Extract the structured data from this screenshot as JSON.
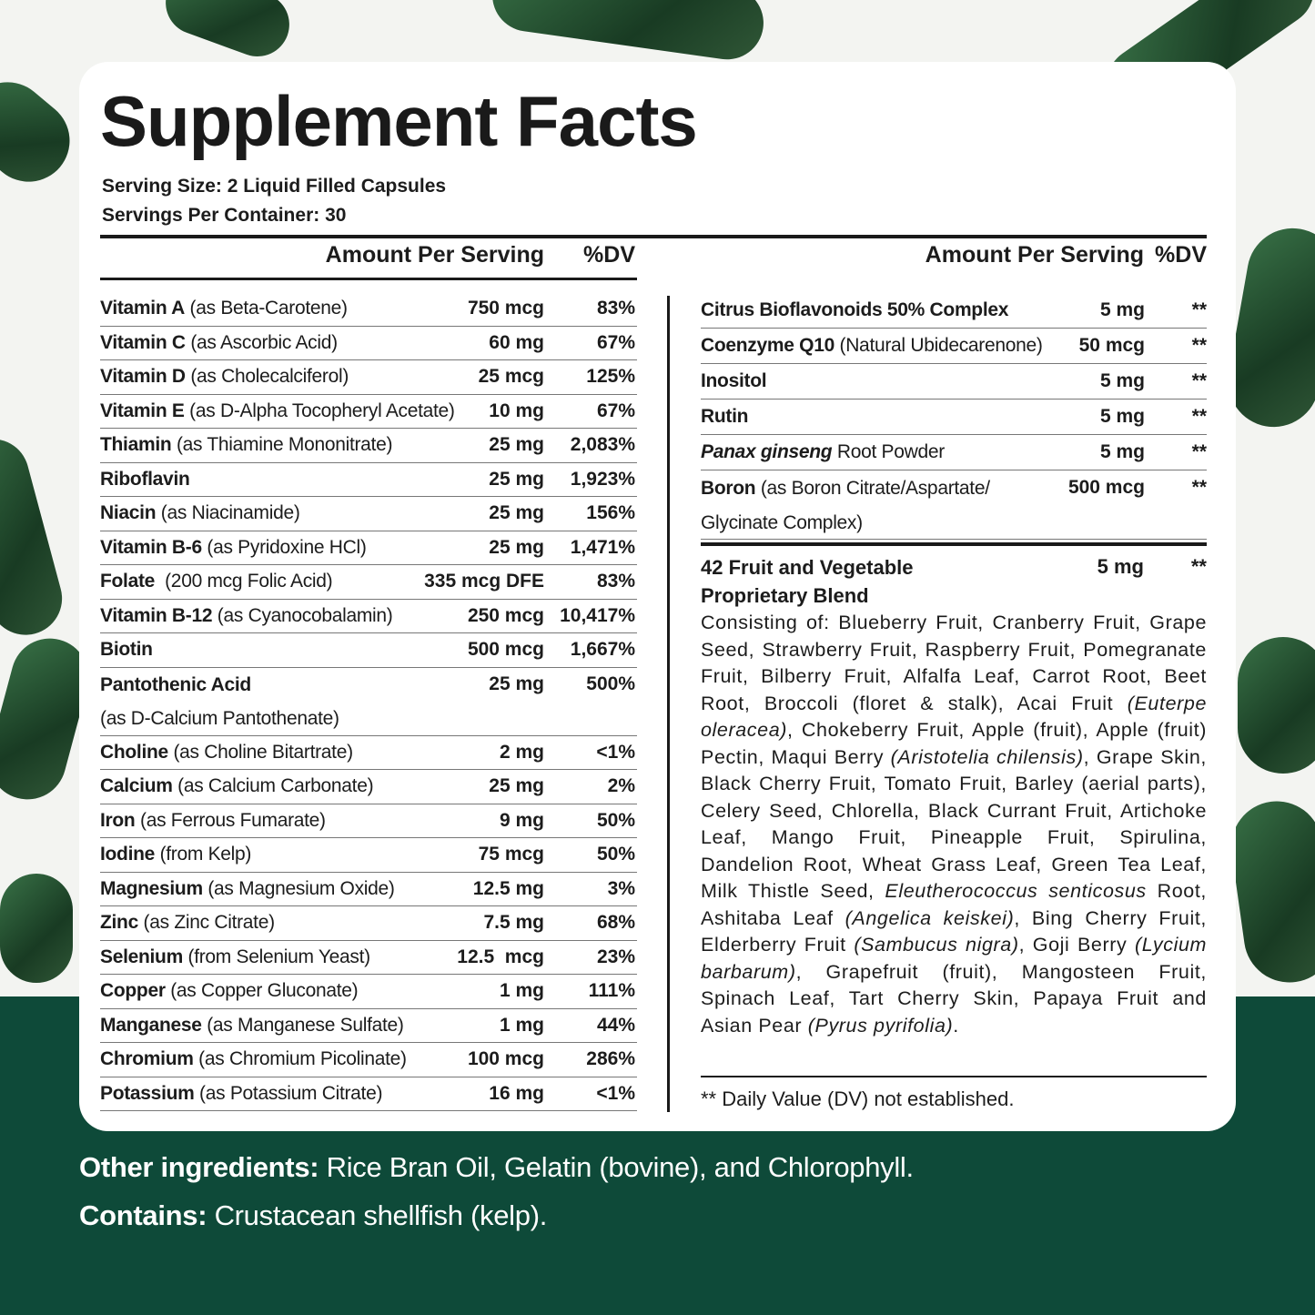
{
  "title": "Supplement Facts",
  "serving_size": "Serving Size: 2 Liquid Filled Capsules",
  "servings_per_container": "Servings Per Container: 30",
  "headers": {
    "amount": "Amount Per Serving",
    "dv": "%DV"
  },
  "left_rows": [
    {
      "name": "Vitamin A",
      "desc": " (as Beta-Carotene)",
      "amount": "750 mcg",
      "dv": "83%"
    },
    {
      "name": "Vitamin C",
      "desc": " (as Ascorbic Acid)",
      "amount": "60 mg",
      "dv": "67%"
    },
    {
      "name": "Vitamin D",
      "desc": " (as Cholecalciferol)",
      "amount": "25 mcg",
      "dv": "125%"
    },
    {
      "name": "Vitamin E",
      "desc": " (as D-Alpha Tocopheryl Acetate)",
      "amount": "10 mg",
      "dv": "67%"
    },
    {
      "name": "Thiamin",
      "desc": " (as Thiamine Mononitrate)",
      "amount": "25 mg",
      "dv": "2,083%"
    },
    {
      "name": "Riboflavin",
      "desc": "",
      "amount": "25 mg",
      "dv": "1,923%"
    },
    {
      "name": "Niacin",
      "desc": " (as Niacinamide)",
      "amount": "25 mg",
      "dv": "156%"
    },
    {
      "name": "Vitamin B-6",
      "desc": " (as Pyridoxine HCl)",
      "amount": "25 mg",
      "dv": "1,471%"
    },
    {
      "name": "Folate",
      "desc": "  (200 mcg Folic Acid)",
      "amount": "335 mcg DFE",
      "dv": "83%"
    },
    {
      "name": "Vitamin B-12",
      "desc": " (as Cyanocobalamin)",
      "amount": "250 mcg",
      "dv": "10,417%"
    },
    {
      "name": "Biotin",
      "desc": "",
      "amount": "500 mcg",
      "dv": "1,667%"
    },
    {
      "name": "Pantothenic Acid",
      "desc": "",
      "desc2": "(as D-Calcium Pantothenate)",
      "amount": "25 mg",
      "dv": "500%"
    },
    {
      "name": "Choline",
      "desc": " (as Choline Bitartrate)",
      "amount": "2 mg",
      "dv": "<1%"
    },
    {
      "name": "Calcium",
      "desc": " (as Calcium Carbonate)",
      "amount": "25 mg",
      "dv": "2%"
    },
    {
      "name": "Iron",
      "desc": " (as Ferrous Fumarate)",
      "amount": "9 mg",
      "dv": "50%"
    },
    {
      "name": "Iodine",
      "desc": " (from Kelp)",
      "amount": "75 mcg",
      "dv": "50%"
    },
    {
      "name": "Magnesium",
      "desc": " (as Magnesium Oxide)",
      "amount": "12.5 mg",
      "dv": "3%"
    },
    {
      "name": "Zinc",
      "desc": " (as Zinc Citrate)",
      "amount": "7.5 mg",
      "dv": "68%"
    },
    {
      "name": "Selenium",
      "desc": " (from Selenium Yeast)",
      "amount": "12.5  mcg",
      "dv": "23%"
    },
    {
      "name": "Copper",
      "desc": " (as Copper Gluconate)",
      "amount": "1 mg",
      "dv": "111%"
    },
    {
      "name": "Manganese",
      "desc": " (as Manganese Sulfate)",
      "amount": "1 mg",
      "dv": "44%"
    },
    {
      "name": "Chromium",
      "desc": " (as Chromium Picolinate)",
      "amount": "100 mcg",
      "dv": "286%"
    },
    {
      "name": "Potassium",
      "desc": " (as Potassium Citrate)",
      "amount": "16 mg",
      "dv": "<1%"
    }
  ],
  "right_rows": [
    {
      "name": "Citrus Bioflavonoids 50% Complex",
      "desc": "",
      "amount": "5 mg",
      "dv": "**"
    },
    {
      "name": "Coenzyme Q10",
      "desc": " (Natural Ubidecarenone)",
      "amount": "50 mcg",
      "dv": "**"
    },
    {
      "name": "Inositol",
      "desc": "",
      "amount": "5 mg",
      "dv": "**"
    },
    {
      "name": "Rutin",
      "desc": "",
      "amount": "5 mg",
      "dv": "**"
    },
    {
      "name": "Panax ginseng",
      "desc": " Root Powder",
      "amount": "5 mg",
      "dv": "**",
      "italic": true
    },
    {
      "name": "Boron",
      "desc": " (as Boron Citrate/Aspartate/",
      "desc2": "Glycinate Complex)",
      "amount": "500 mcg",
      "dv": "**"
    }
  ],
  "blend": {
    "name_line1": "42 Fruit and Vegetable",
    "name_line2": "Proprietary Blend",
    "amount": "5 mg",
    "dv": "**",
    "segments": [
      {
        "t": "Consisting of: Blueberry Fruit, Cranberry Fruit, Grape Seed, Strawberry Fruit, Raspberry Fruit, Pomegranate Fruit, Bilberry Fruit, Alfalfa Leaf, Carrot Root, Beet Root, Broccoli (floret & stalk), Acai Fruit "
      },
      {
        "t": "(Euterpe oleracea)",
        "i": true
      },
      {
        "t": ", Chokeberry Fruit, Apple (fruit), Apple (fruit) Pectin, Maqui Berry "
      },
      {
        "t": "(Aristotelia chilensis)",
        "i": true
      },
      {
        "t": ", Grape Skin, Black Cherry Fruit, Tomato Fruit, Barley (aerial parts), Celery Seed, Chlorella, Black Currant Fruit, Artichoke Leaf, Mango Fruit, Pineapple Fruit, Spirulina, Dandelion Root, Wheat Grass Leaf, Green Tea Leaf, Milk Thistle Seed, "
      },
      {
        "t": "Eleutherococcus senticosus",
        "i": true
      },
      {
        "t": " Root, Ashitaba Leaf "
      },
      {
        "t": "(Angelica keiskei)",
        "i": true
      },
      {
        "t": ", Bing Cherry Fruit, Elderberry Fruit "
      },
      {
        "t": "(Sambucus nigra)",
        "i": true
      },
      {
        "t": ", Goji Berry "
      },
      {
        "t": "(Lycium barbarum)",
        "i": true
      },
      {
        "t": ", Grapefruit (fruit), Mangosteen Fruit, Spinach Leaf, Tart Cherry Skin, Papaya Fruit and Asian Pear "
      },
      {
        "t": "(Pyrus pyrifolia)",
        "i": true
      },
      {
        "t": "."
      }
    ]
  },
  "footnote": "** Daily Value (DV) not established.",
  "other_ingredients": {
    "label": "Other ingredients:",
    "text": " Rice Bran Oil, Gelatin (bovine), and Chlorophyll."
  },
  "contains": {
    "label": "Contains:",
    "text": " Crustacean shellfish (kelp)."
  },
  "colors": {
    "bottom_band": "#0e4a39",
    "capsule": "#1f4d2a",
    "card": "#ffffff"
  }
}
